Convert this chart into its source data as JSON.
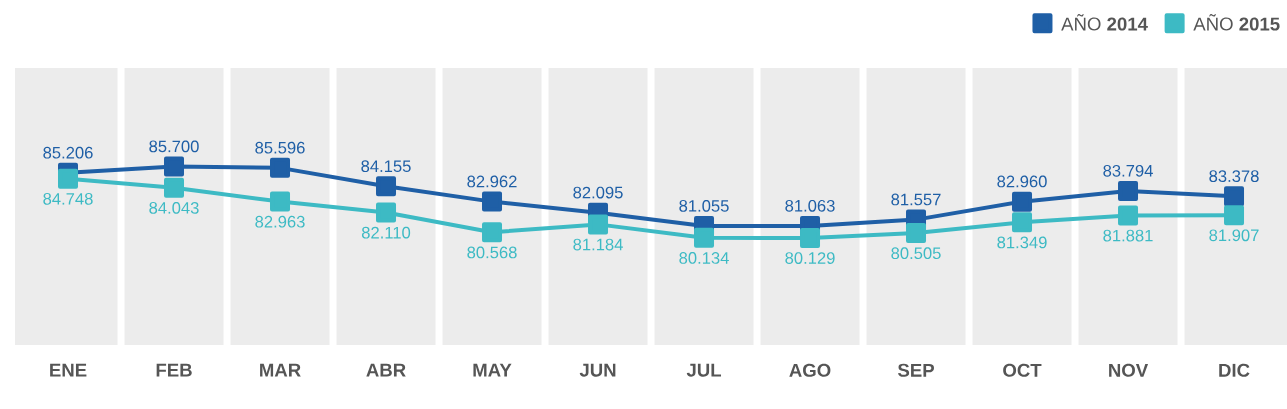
{
  "chart_data": {
    "type": "line",
    "categories": [
      "ENE",
      "FEB",
      "MAR",
      "ABR",
      "MAY",
      "JUN",
      "JUL",
      "AGO",
      "SEP",
      "OCT",
      "NOV",
      "DIC"
    ],
    "series": [
      {
        "name": "AÑO **2014**",
        "color": "#1f5fa6",
        "values": [
          85206,
          85700,
          85596,
          84155,
          82962,
          82095,
          81055,
          81063,
          81557,
          82960,
          83794,
          83378
        ],
        "value_labels": [
          "85.206",
          "85.700",
          "85.596",
          "84.155",
          "82.962",
          "82.095",
          "81.055",
          "81.063",
          "81.557",
          "82.960",
          "83.794",
          "83.378"
        ]
      },
      {
        "name": "AÑO **2015**",
        "color": "#3dbac4",
        "values": [
          84748,
          84043,
          82963,
          82110,
          80568,
          81184,
          80134,
          80129,
          80505,
          81349,
          81881,
          81907
        ],
        "value_labels": [
          "84.748",
          "84.043",
          "82.963",
          "82.110",
          "80.568",
          "81.184",
          "80.134",
          "80.129",
          "80.505",
          "81.349",
          "81.881",
          "81.907"
        ]
      }
    ],
    "legend": "top right",
    "marker": "square",
    "line_style": "solid",
    "grid": "x"
  }
}
